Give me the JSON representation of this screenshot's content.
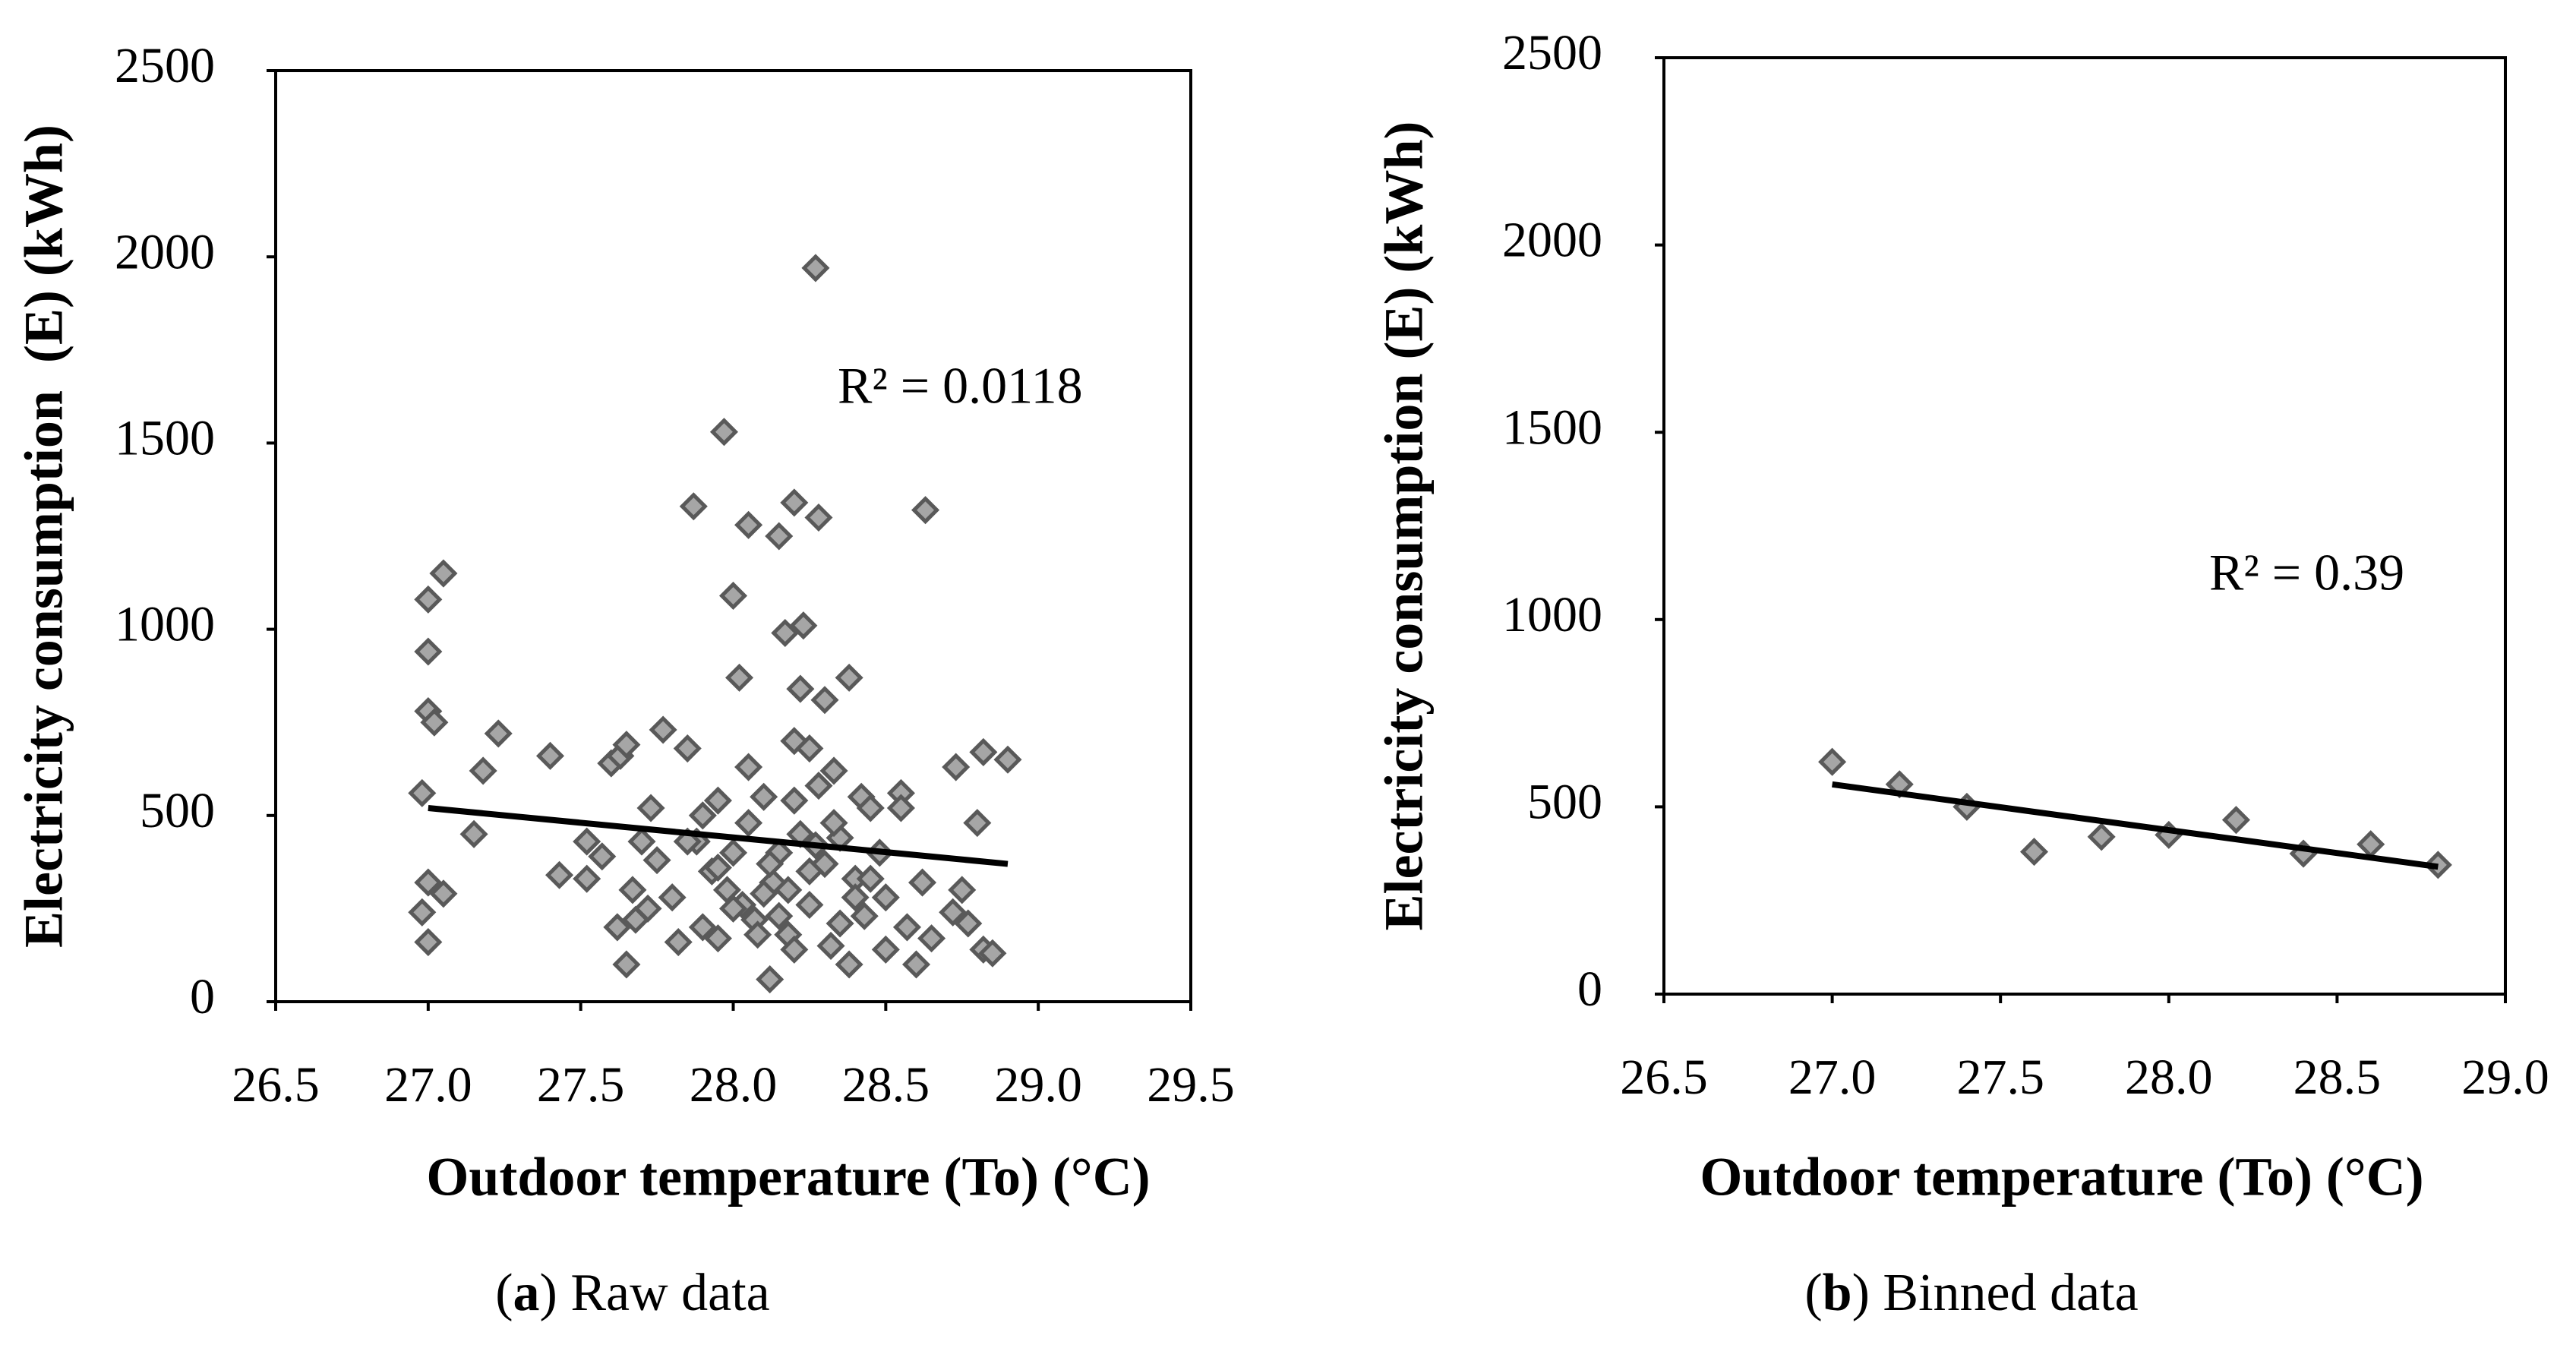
{
  "chart_data": [
    {
      "type": "scatter",
      "x": [
        26.98,
        26.98,
        27.0,
        27.0,
        27.02,
        27.0,
        27.0,
        27.0,
        27.05,
        27.05,
        27.15,
        27.18,
        27.23,
        27.4,
        27.43,
        27.52,
        27.52,
        27.57,
        27.6,
        27.62,
        27.63,
        27.65,
        27.65,
        27.67,
        27.68,
        27.7,
        27.72,
        27.73,
        27.75,
        27.77,
        27.8,
        27.82,
        27.85,
        27.87,
        27.88,
        27.9,
        27.9,
        27.93,
        27.95,
        27.95,
        27.97,
        27.98,
        28.0,
        28.0,
        28.02,
        28.03,
        28.05,
        28.05,
        28.07,
        28.1,
        28.12,
        28.13,
        28.15,
        28.15,
        28.17,
        28.18,
        28.2,
        28.2,
        28.2,
        28.22,
        28.23,
        28.22,
        28.25,
        28.25,
        28.27,
        28.28,
        28.28,
        28.3,
        28.3,
        28.32,
        28.33,
        28.35,
        28.35,
        28.38,
        28.38,
        28.4,
        28.42,
        28.43,
        28.45,
        28.48,
        28.5,
        28.5,
        28.55,
        28.55,
        28.57,
        28.6,
        28.62,
        28.63,
        28.65,
        28.72,
        28.73,
        28.75,
        28.77,
        28.8,
        28.82,
        28.82,
        28.85,
        28.9,
        28.08,
        28.1,
        28.12,
        28.18,
        28.27,
        28.33,
        28.05,
        27.95,
        28.0,
        28.15,
        28.25,
        28.4,
        28.45,
        28.2,
        27.85
      ],
      "values": [
        560,
        240,
        160,
        780,
        750,
        940,
        1080,
        320,
        290,
        1150,
        450,
        620,
        720,
        660,
        340,
        430,
        330,
        390,
        640,
        200,
        660,
        690,
        100,
        300,
        220,
        430,
        250,
        520,
        380,
        730,
        280,
        160,
        680,
        1330,
        430,
        500,
        200,
        350,
        540,
        170,
        1530,
        300,
        1090,
        400,
        870,
        260,
        1280,
        630,
        220,
        550,
        60,
        320,
        1250,
        400,
        990,
        180,
        1340,
        700,
        540,
        450,
        1010,
        840,
        680,
        260,
        1970,
        1300,
        580,
        810,
        370,
        150,
        620,
        440,
        210,
        870,
        100,
        330,
        550,
        230,
        520,
        400,
        280,
        140,
        560,
        520,
        200,
        100,
        320,
        1320,
        170,
        240,
        630,
        300,
        210,
        480,
        670,
        140,
        130,
        650,
        180,
        290,
        370,
        300,
        420,
        480,
        480,
        360,
        250,
        230,
        350,
        280,
        330,
        140,
        430
      ],
      "color": "#a6a6a6",
      "trendline": {
        "x": [
          27.0,
          28.9
        ],
        "values": [
          520,
          370
        ],
        "color": "#000000"
      },
      "annotation": "R² = 0.0118",
      "xlabel": "Outdoor temperature (To) (°C)",
      "ylabel": "Electricity consumption  (E) (kWh)",
      "xlim": [
        26.5,
        29.5
      ],
      "xticks": [
        26.5,
        {
          "value": 27,
          "label": "27.0"
        },
        27.5,
        {
          "value": 28,
          "label": "28.0"
        },
        28.5,
        {
          "value": 29,
          "label": "29.0"
        },
        29.5
      ],
      "ylim": [
        0,
        2500
      ],
      "yticks": [
        0,
        500,
        1000,
        1500,
        2000,
        2500
      ],
      "caption": [
        "(",
        "a",
        ") Raw data"
      ]
    },
    {
      "type": "scatter",
      "x": [
        27.0,
        27.2,
        27.4,
        27.6,
        27.8,
        28.0,
        28.2,
        28.4,
        28.6,
        28.8
      ],
      "values": [
        620,
        560,
        500,
        380,
        420,
        425,
        465,
        375,
        400,
        345
      ],
      "color": "#a6a6a6",
      "trendline": {
        "x": [
          27.0,
          28.8
        ],
        "values": [
          560,
          340
        ],
        "color": "#000000"
      },
      "annotation": "R² = 0.39",
      "xlabel": "Outdoor temperature (To) (°C)",
      "ylabel": "Electricity consumption (E) (kWh)",
      "xlim": [
        26.5,
        29.0
      ],
      "xticks": [
        26.5,
        {
          "value": 27,
          "label": "27.0"
        },
        27.5,
        {
          "value": 28,
          "label": "28.0"
        },
        28.5,
        {
          "value": 29,
          "label": "29.0"
        }
      ],
      "ylim": [
        0,
        2500
      ],
      "yticks": [
        0,
        500,
        1000,
        1500,
        2000,
        2500
      ],
      "caption": [
        "(",
        "b",
        ") Binned data"
      ]
    }
  ]
}
